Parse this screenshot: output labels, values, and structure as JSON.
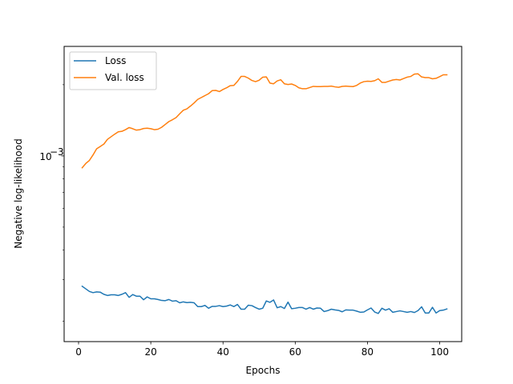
{
  "chart_data": {
    "type": "line",
    "title": "",
    "xlabel": "Epochs",
    "ylabel": "Negative log-likelihood",
    "xlim": [
      -4.0,
      106.1
    ],
    "ylim_log10": [
      -3.785,
      -2.537
    ],
    "yscale": "log",
    "grid": false,
    "legend": "top-left",
    "x_ticks": [
      0,
      20,
      40,
      60,
      80,
      100
    ],
    "x_tick_labels": [
      "0",
      "20",
      "40",
      "60",
      "80",
      "100"
    ],
    "y_ticks": [
      0.001
    ],
    "y_tick_labels": [
      "10",
      "−3"
    ],
    "x": [
      1,
      2,
      3,
      4,
      5,
      6,
      7,
      8,
      9,
      10,
      11,
      12,
      13,
      14,
      15,
      16,
      17,
      18,
      19,
      20,
      21,
      22,
      23,
      24,
      25,
      26,
      27,
      28,
      29,
      30,
      31,
      32,
      33,
      34,
      35,
      36,
      37,
      38,
      39,
      40,
      41,
      42,
      43,
      44,
      45,
      46,
      47,
      48,
      49,
      50,
      51,
      52,
      53,
      54,
      55,
      56,
      57,
      58,
      59,
      60,
      61,
      62,
      63,
      64,
      65,
      66,
      67,
      68,
      69,
      70,
      71,
      72,
      73,
      74,
      75,
      76,
      77,
      78,
      79,
      80,
      81,
      82,
      83,
      84,
      85,
      86,
      87,
      88,
      89,
      90,
      91,
      92,
      93,
      94,
      95,
      96,
      97,
      98,
      99,
      100,
      101,
      102
    ],
    "series": [
      {
        "name": "Loss",
        "color": "#1f77b4",
        "log10_values": [
          -3.551,
          -3.562,
          -3.573,
          -3.578,
          -3.575,
          -3.576,
          -3.585,
          -3.59,
          -3.587,
          -3.587,
          -3.59,
          -3.585,
          -3.578,
          -3.598,
          -3.586,
          -3.593,
          -3.593,
          -3.608,
          -3.596,
          -3.604,
          -3.604,
          -3.607,
          -3.611,
          -3.612,
          -3.607,
          -3.614,
          -3.612,
          -3.621,
          -3.617,
          -3.62,
          -3.619,
          -3.621,
          -3.637,
          -3.637,
          -3.632,
          -3.644,
          -3.636,
          -3.636,
          -3.633,
          -3.637,
          -3.635,
          -3.63,
          -3.637,
          -3.628,
          -3.648,
          -3.648,
          -3.631,
          -3.633,
          -3.641,
          -3.648,
          -3.644,
          -3.613,
          -3.619,
          -3.609,
          -3.642,
          -3.637,
          -3.645,
          -3.618,
          -3.646,
          -3.644,
          -3.641,
          -3.641,
          -3.648,
          -3.641,
          -3.648,
          -3.643,
          -3.644,
          -3.658,
          -3.654,
          -3.648,
          -3.651,
          -3.653,
          -3.659,
          -3.651,
          -3.652,
          -3.652,
          -3.656,
          -3.661,
          -3.66,
          -3.651,
          -3.643,
          -3.66,
          -3.666,
          -3.644,
          -3.652,
          -3.646,
          -3.661,
          -3.658,
          -3.655,
          -3.658,
          -3.661,
          -3.658,
          -3.662,
          -3.654,
          -3.638,
          -3.664,
          -3.664,
          -3.64,
          -3.664,
          -3.654,
          -3.652,
          -3.647
        ]
      },
      {
        "name": "Val. loss",
        "color": "#ff7f0e",
        "log10_values": [
          -3.05,
          -3.032,
          -3.019,
          -2.996,
          -2.97,
          -2.96,
          -2.95,
          -2.93,
          -2.919,
          -2.908,
          -2.898,
          -2.896,
          -2.889,
          -2.88,
          -2.885,
          -2.891,
          -2.889,
          -2.884,
          -2.883,
          -2.885,
          -2.889,
          -2.887,
          -2.879,
          -2.867,
          -2.855,
          -2.847,
          -2.838,
          -2.822,
          -2.807,
          -2.801,
          -2.789,
          -2.776,
          -2.761,
          -2.753,
          -2.745,
          -2.737,
          -2.724,
          -2.723,
          -2.728,
          -2.719,
          -2.712,
          -2.703,
          -2.702,
          -2.685,
          -2.664,
          -2.664,
          -2.671,
          -2.681,
          -2.686,
          -2.68,
          -2.667,
          -2.666,
          -2.692,
          -2.695,
          -2.683,
          -2.678,
          -2.695,
          -2.698,
          -2.696,
          -2.702,
          -2.712,
          -2.716,
          -2.716,
          -2.711,
          -2.706,
          -2.707,
          -2.707,
          -2.706,
          -2.706,
          -2.705,
          -2.708,
          -2.71,
          -2.706,
          -2.705,
          -2.706,
          -2.707,
          -2.702,
          -2.692,
          -2.686,
          -2.684,
          -2.685,
          -2.682,
          -2.674,
          -2.689,
          -2.689,
          -2.684,
          -2.679,
          -2.677,
          -2.679,
          -2.673,
          -2.667,
          -2.664,
          -2.654,
          -2.653,
          -2.666,
          -2.669,
          -2.669,
          -2.674,
          -2.672,
          -2.665,
          -2.657,
          -2.657
        ]
      }
    ]
  }
}
